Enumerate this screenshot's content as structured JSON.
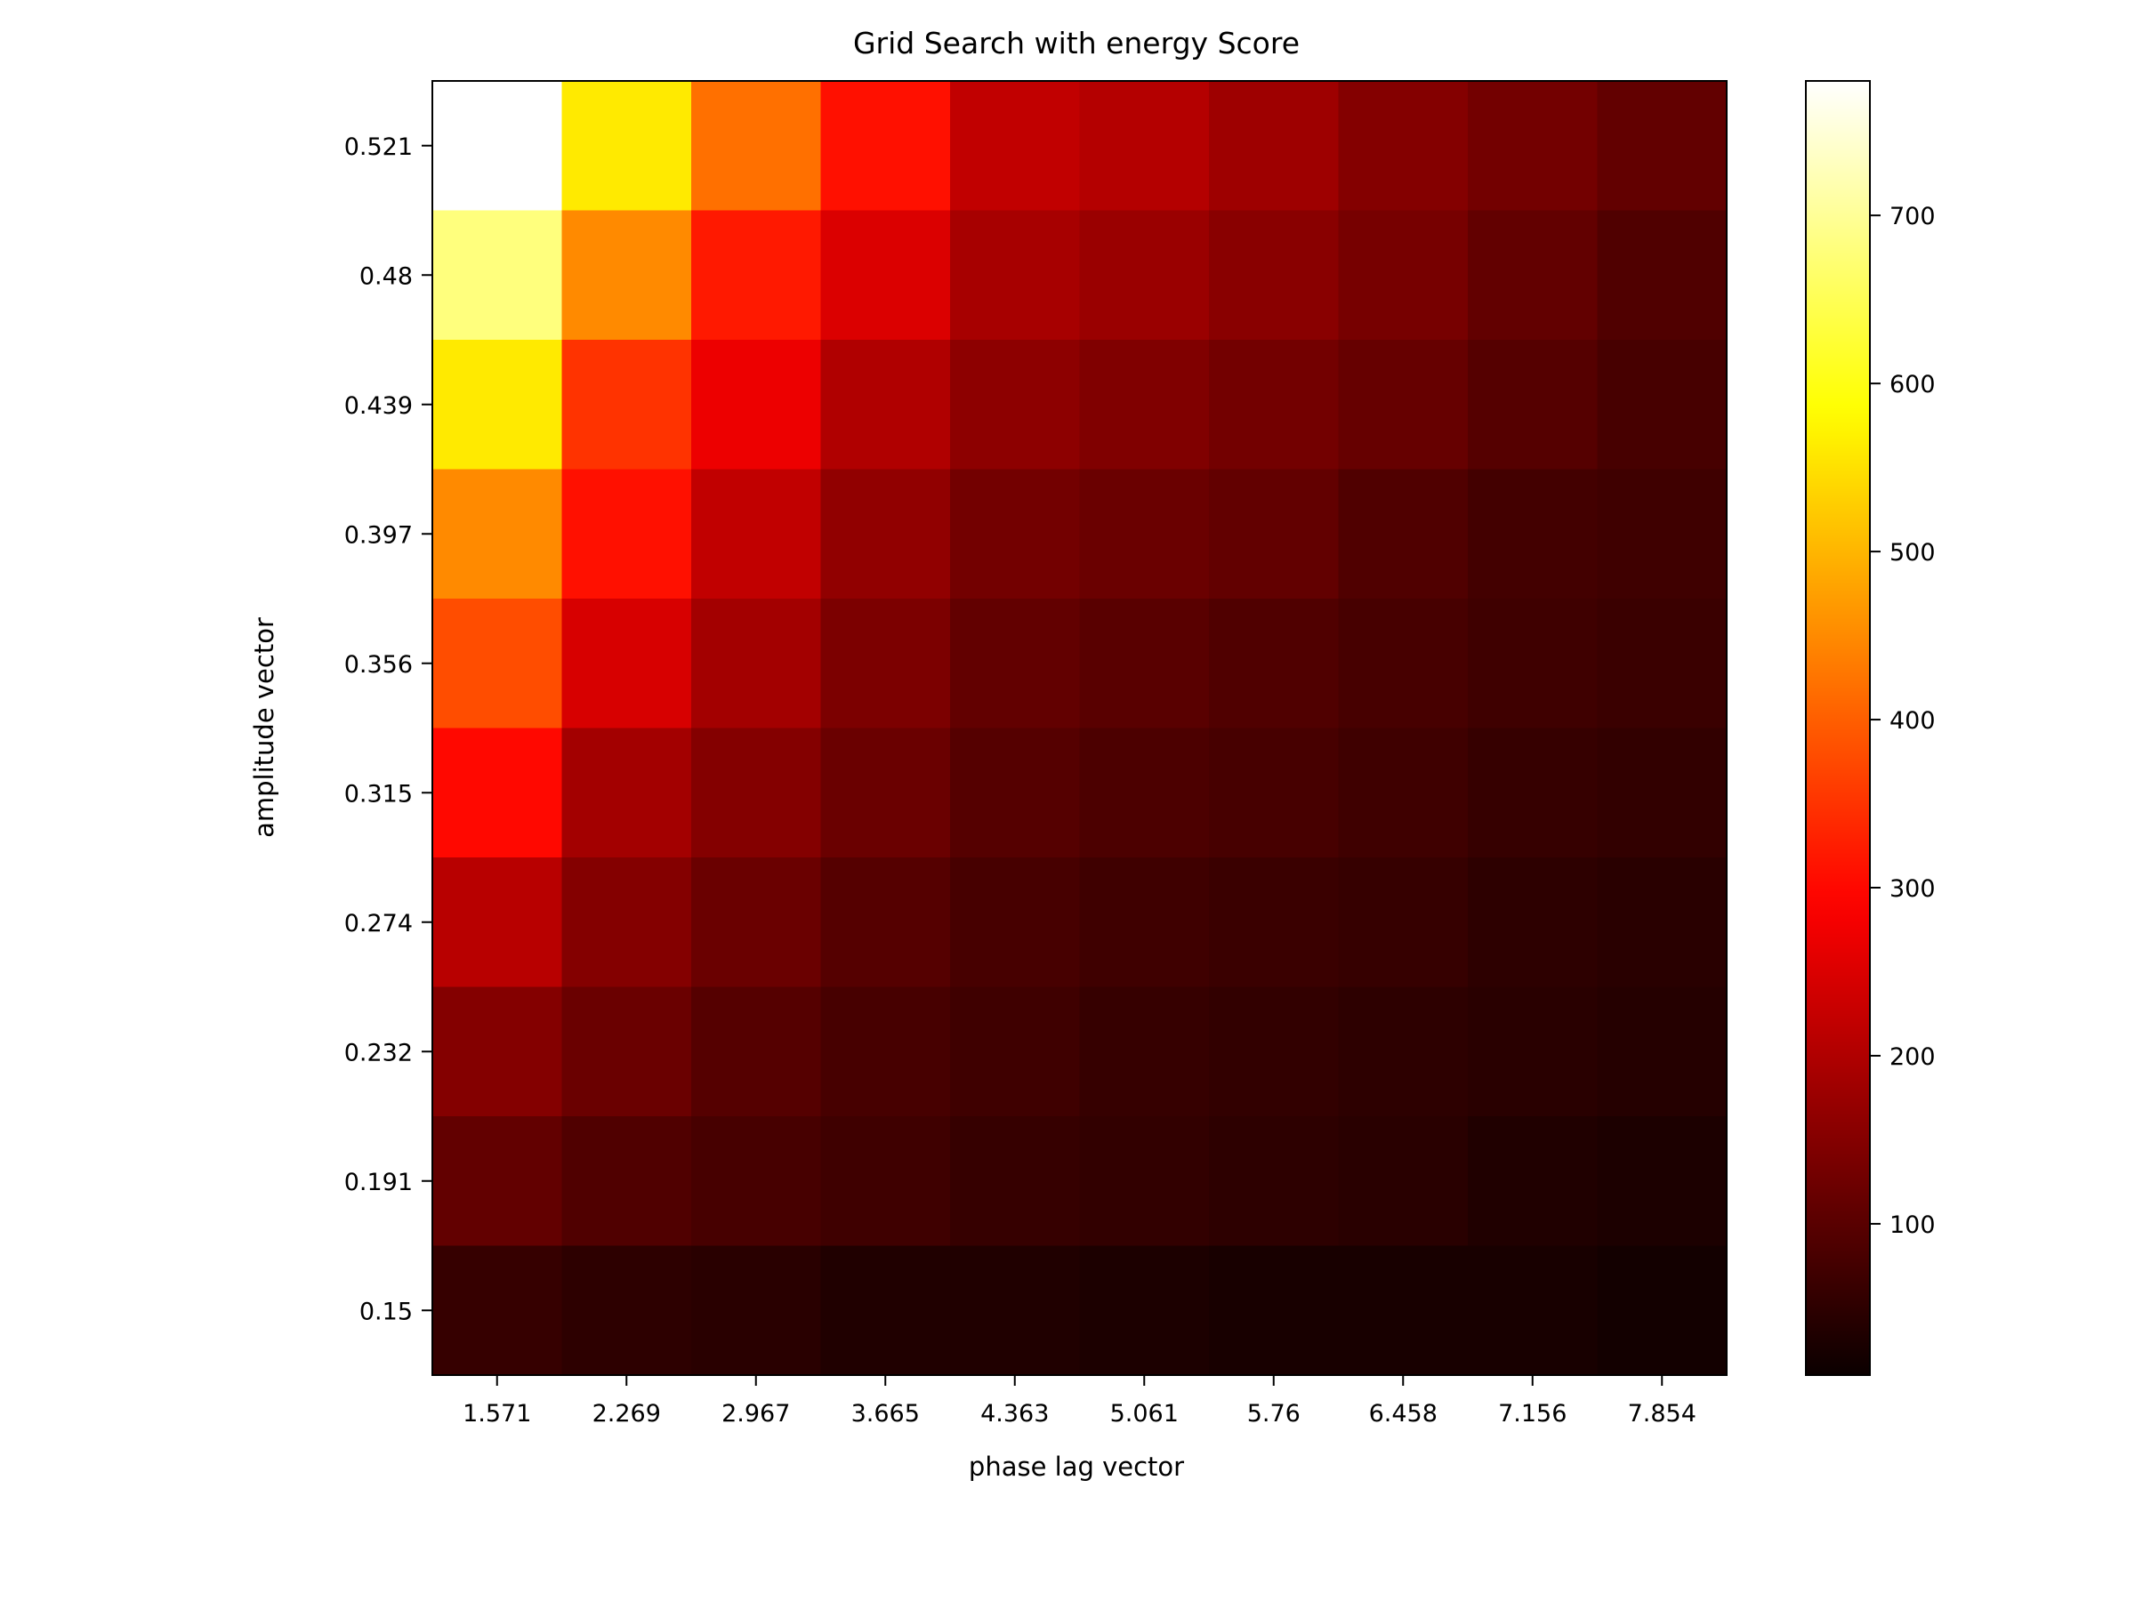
{
  "chart_data": {
    "type": "heatmap",
    "title": "Grid Search with energy Score",
    "xlabel": "phase lag vector",
    "ylabel": "amplitude vector",
    "x": [
      "1.571",
      "2.269",
      "2.967",
      "3.665",
      "4.363",
      "5.061",
      "5.76",
      "6.458",
      "7.156",
      "7.854"
    ],
    "y": [
      "0.521",
      "0.48",
      "0.439",
      "0.397",
      "0.356",
      "0.315",
      "0.274",
      "0.232",
      "0.191",
      "0.15"
    ],
    "values": [
      [
        780,
        560,
        420,
        310,
        220,
        205,
        180,
        150,
        130,
        110
      ],
      [
        680,
        450,
        320,
        250,
        190,
        175,
        155,
        135,
        110,
        90
      ],
      [
        560,
        350,
        270,
        200,
        160,
        145,
        130,
        115,
        95,
        80
      ],
      [
        450,
        310,
        220,
        165,
        130,
        120,
        110,
        90,
        75,
        70
      ],
      [
        380,
        245,
        185,
        140,
        110,
        100,
        90,
        80,
        70,
        65
      ],
      [
        300,
        185,
        150,
        120,
        95,
        85,
        80,
        70,
        60,
        55
      ],
      [
        210,
        150,
        120,
        95,
        80,
        70,
        65,
        60,
        50,
        45
      ],
      [
        150,
        120,
        95,
        80,
        70,
        60,
        55,
        50,
        45,
        40
      ],
      [
        110,
        90,
        80,
        70,
        60,
        55,
        50,
        45,
        35,
        30
      ],
      [
        60,
        50,
        45,
        35,
        35,
        30,
        25,
        25,
        25,
        20
      ]
    ],
    "colormap": "hot",
    "colorbar": {
      "range": [
        10,
        780
      ],
      "ticks": [
        100,
        200,
        300,
        400,
        500,
        600,
        700
      ],
      "tick_labels": [
        "100",
        "200",
        "300",
        "400",
        "500",
        "600",
        "700"
      ]
    },
    "grid": false
  }
}
